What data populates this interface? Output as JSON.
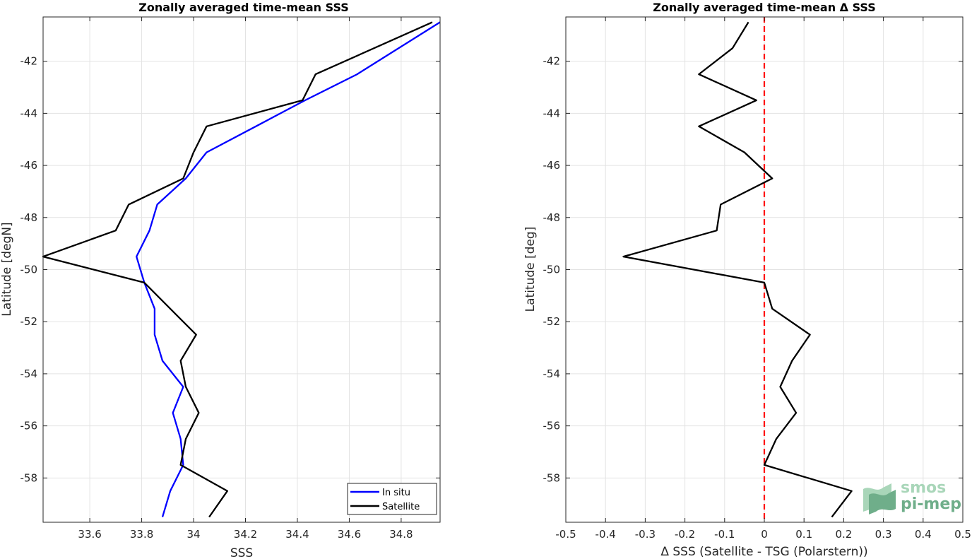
{
  "logo": {
    "line1": "smos",
    "line2": "pi-mep",
    "color_light": "#a9d6b9",
    "color_dark": "#6fae8a"
  },
  "chart_data": [
    {
      "type": "line",
      "title": "Zonally averaged time-mean SSS",
      "xlabel": "SSS",
      "ylabel": "Latitude [degN]",
      "xlim": [
        33.42,
        34.95
      ],
      "ylim": [
        -59.7,
        -40.3
      ],
      "xticks": [
        33.6,
        33.8,
        34,
        34.2,
        34.4,
        34.6,
        34.8
      ],
      "xtick_labels": [
        "33.6",
        "33.8",
        "34",
        "34.2",
        "34.4",
        "34.6",
        "34.8"
      ],
      "yticks": [
        -42,
        -44,
        -46,
        -48,
        -50,
        -52,
        -54,
        -56,
        -58
      ],
      "ytick_labels": [
        "-42",
        "-44",
        "-46",
        "-48",
        "-50",
        "-52",
        "-54",
        "-56",
        "-58"
      ],
      "grid": true,
      "legend": "bottom-right",
      "series": [
        {
          "name": "In situ",
          "color": "#0000ff",
          "points": [
            [
              34.95,
              -40.5
            ],
            [
              34.63,
              -42.5
            ],
            [
              34.43,
              -43.5
            ],
            [
              34.24,
              -44.5
            ],
            [
              34.05,
              -45.5
            ],
            [
              33.97,
              -46.5
            ],
            [
              33.86,
              -47.5
            ],
            [
              33.83,
              -48.5
            ],
            [
              33.78,
              -49.5
            ],
            [
              33.81,
              -50.5
            ],
            [
              33.85,
              -51.5
            ],
            [
              33.85,
              -52.5
            ],
            [
              33.88,
              -53.5
            ],
            [
              33.96,
              -54.5
            ],
            [
              33.92,
              -55.5
            ],
            [
              33.95,
              -56.5
            ],
            [
              33.96,
              -57.5
            ],
            [
              33.91,
              -58.5
            ],
            [
              33.88,
              -59.5
            ]
          ]
        },
        {
          "name": "Satellite",
          "color": "#000000",
          "points": [
            [
              34.92,
              -40.5
            ],
            [
              34.47,
              -42.5
            ],
            [
              34.42,
              -43.5
            ],
            [
              34.05,
              -44.5
            ],
            [
              34.0,
              -45.5
            ],
            [
              33.96,
              -46.5
            ],
            [
              33.75,
              -47.5
            ],
            [
              33.7,
              -48.5
            ],
            [
              33.42,
              -49.5
            ],
            [
              33.81,
              -50.5
            ],
            [
              33.91,
              -51.5
            ],
            [
              34.01,
              -52.5
            ],
            [
              33.95,
              -53.5
            ],
            [
              33.97,
              -54.5
            ],
            [
              34.02,
              -55.5
            ],
            [
              33.97,
              -56.5
            ],
            [
              33.95,
              -57.5
            ],
            [
              34.13,
              -58.5
            ],
            [
              34.06,
              -59.5
            ]
          ]
        }
      ]
    },
    {
      "type": "line",
      "title": "Zonally averaged time-mean Δ SSS",
      "xlabel": "Δ SSS (Satellite - TSG (Polarstern))",
      "ylabel": "Latitude [deg]",
      "xlim": [
        -0.5,
        0.5
      ],
      "ylim": [
        -59.7,
        -40.3
      ],
      "xticks": [
        -0.5,
        -0.4,
        -0.3,
        -0.2,
        -0.1,
        0,
        0.1,
        0.2,
        0.3,
        0.4,
        0.5
      ],
      "xtick_labels": [
        "-0.5",
        "-0.4",
        "-0.3",
        "-0.2",
        "-0.1",
        "0",
        "0.1",
        "0.2",
        "0.3",
        "0.4",
        "0.5"
      ],
      "yticks": [
        -42,
        -44,
        -46,
        -48,
        -50,
        -52,
        -54,
        -56,
        -58
      ],
      "ytick_labels": [
        "-42",
        "-44",
        "-46",
        "-48",
        "-50",
        "-52",
        "-54",
        "-56",
        "-58"
      ],
      "grid": true,
      "reference_line": {
        "x": 0,
        "color": "#ff0000",
        "style": "dashed"
      },
      "series": [
        {
          "color": "#000000",
          "points": [
            [
              -0.04,
              -40.5
            ],
            [
              -0.08,
              -41.5
            ],
            [
              -0.165,
              -42.5
            ],
            [
              -0.02,
              -43.5
            ],
            [
              -0.165,
              -44.5
            ],
            [
              -0.05,
              -45.5
            ],
            [
              0.02,
              -46.5
            ],
            [
              -0.11,
              -47.5
            ],
            [
              -0.12,
              -48.5
            ],
            [
              -0.355,
              -49.5
            ],
            [
              0.0,
              -50.5
            ],
            [
              0.02,
              -51.5
            ],
            [
              0.115,
              -52.5
            ],
            [
              0.07,
              -53.5
            ],
            [
              0.04,
              -54.5
            ],
            [
              0.08,
              -55.5
            ],
            [
              0.03,
              -56.5
            ],
            [
              0.0,
              -57.5
            ],
            [
              0.22,
              -58.5
            ],
            [
              0.17,
              -59.5
            ]
          ]
        }
      ]
    }
  ]
}
